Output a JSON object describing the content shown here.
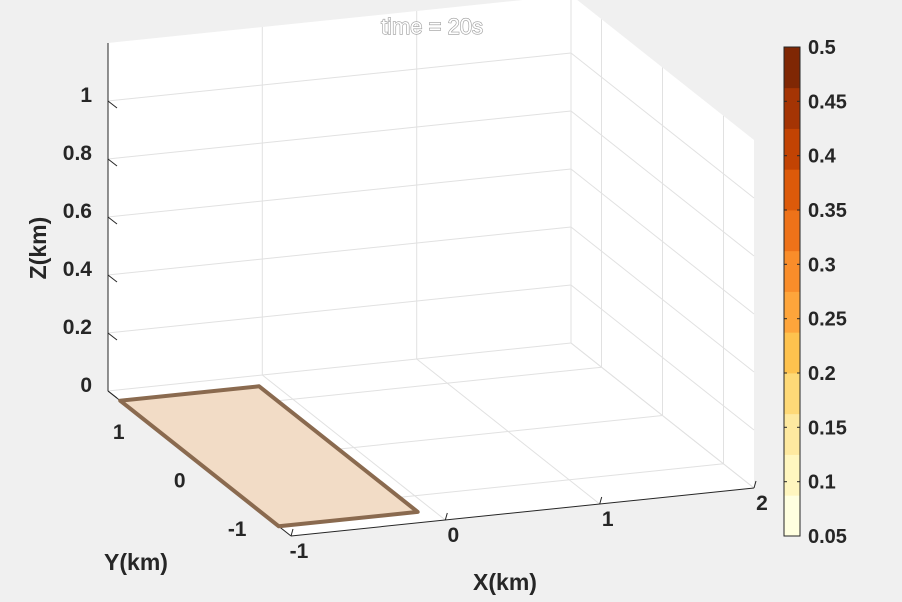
{
  "chart_data": {
    "type": "3d-surface",
    "title": "time = 20s",
    "xlabel": "X(km)",
    "ylabel": "Y(km)",
    "zlabel": "Z(km)",
    "xlim": [
      -1,
      2
    ],
    "ylim": [
      -1.5,
      1.5
    ],
    "zlim": [
      0,
      1.2
    ],
    "xticks": [
      "-1",
      "0",
      "1",
      "2"
    ],
    "yticks": [
      "-1",
      "0",
      "1"
    ],
    "zticks": [
      "0",
      "0.2",
      "0.4",
      "0.6",
      "0.8",
      "1"
    ],
    "grid": true,
    "colorbar": {
      "ticks": [
        "0.05",
        "0.1",
        "0.15",
        "0.2",
        "0.25",
        "0.3",
        "0.35",
        "0.4",
        "0.45",
        "0.5"
      ],
      "range": [
        0.05,
        0.5
      ],
      "levels": [
        "#ffffe0",
        "#fff6bf",
        "#fee9a0",
        "#fed977",
        "#fec24e",
        "#fea53b",
        "#f98d2a",
        "#ee7219",
        "#dc5a0a",
        "#c24303",
        "#a43404",
        "#7f2704"
      ]
    },
    "fault_patch": {
      "x": [
        -1.0,
        -0.1
      ],
      "y": [
        -1.3,
        1.3
      ],
      "z": 0,
      "fill_color": "#f2dcc6",
      "edge_color": "#8a6a4f"
    }
  }
}
